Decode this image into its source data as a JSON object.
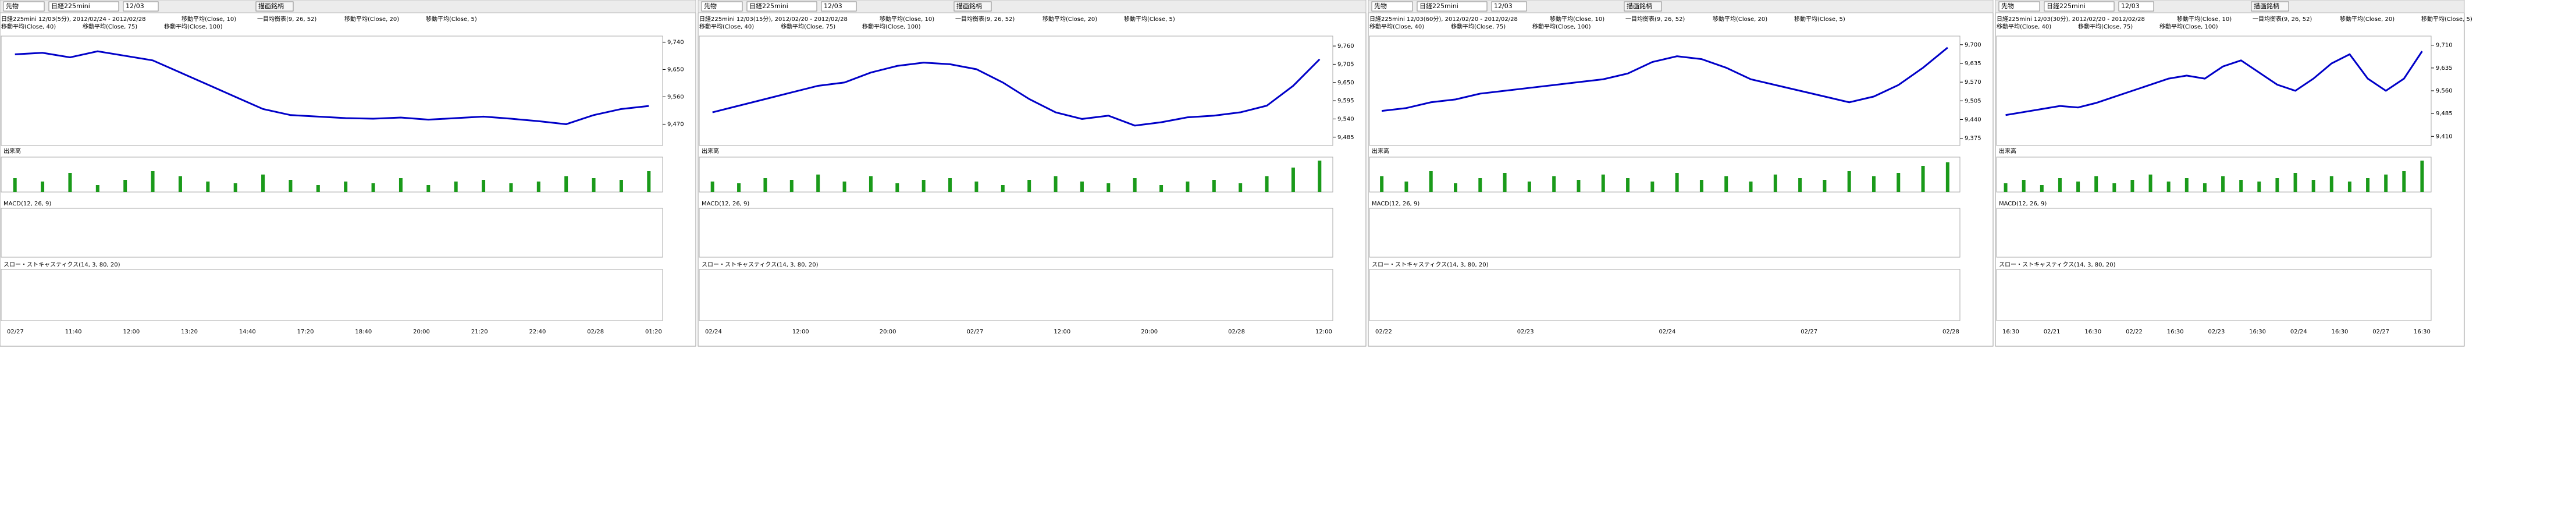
{
  "panels": [
    {
      "toolbar": {
        "instrument": "先物",
        "symbol": "日経225mini",
        "contract": "12/03",
        "button": "描画銘柄"
      },
      "legend": [
        "日経225mini 12/03(5分), 2012/02/24 - 2012/02/28",
        "移動平均(Close, 10)",
        "一目均衡表(9, 26, 52)",
        "移動平均(Close, 20)",
        "移動平均(Close, 5)",
        "移動平均(Close, 40)",
        "移動平均(Close, 75)",
        "移動平均(Close, 100)"
      ],
      "price": {
        "ylim": [
          9400,
          9760
        ],
        "yticks": [
          {
            "value": 9740,
            "label": "9,740"
          },
          {
            "value": 9650,
            "label": "9,650"
          },
          {
            "value": 9560,
            "label": "9,560"
          },
          {
            "value": 9470,
            "label": "9,470"
          }
        ],
        "values": [
          9700,
          9705,
          9690,
          9710,
          9695,
          9680,
          9640,
          9600,
          9560,
          9520,
          9500,
          9495,
          9490,
          9488,
          9492,
          9485,
          9490,
          9495,
          9488,
          9480,
          9470,
          9500,
          9520,
          9530
        ]
      },
      "volume": {
        "label": "出来高",
        "ylim": [
          0,
          100
        ],
        "values": [
          40,
          30,
          55,
          20,
          35,
          60,
          45,
          30,
          25,
          50,
          35,
          20,
          30,
          25,
          40,
          20,
          30,
          35,
          25,
          30,
          45,
          40,
          35,
          60
        ]
      },
      "macd": "MACD(12, 26, 9)",
      "stoch": "スロー・ストキャスティクス(14, 3, 80, 20)",
      "xlabels": [
        "02/27",
        "11:40",
        "12:00",
        "13:20",
        "14:40",
        "17:20",
        "18:40",
        "20:00",
        "21:20",
        "22:40",
        "02/28",
        "01:20"
      ]
    },
    {
      "toolbar": {
        "instrument": "先物",
        "symbol": "日経225mini",
        "contract": "12/03",
        "button": "描画銘柄"
      },
      "legend": [
        "日経225mini 12/03(15分), 2012/02/20 - 2012/02/28",
        "移動平均(Close, 10)",
        "一目均衡表(9, 26, 52)",
        "移動平均(Close, 20)",
        "移動平均(Close, 5)",
        "移動平均(Close, 40)",
        "移動平均(Close, 75)",
        "移動平均(Close, 100)"
      ],
      "price": {
        "ylim": [
          9460,
          9790
        ],
        "yticks": [
          {
            "value": 9760,
            "label": "9,760"
          },
          {
            "value": 9705,
            "label": "9,705"
          },
          {
            "value": 9650,
            "label": "9,650"
          },
          {
            "value": 9595,
            "label": "9,595"
          },
          {
            "value": 9540,
            "label": "9,540"
          },
          {
            "value": 9485,
            "label": "9,485"
          }
        ],
        "values": [
          9560,
          9580,
          9600,
          9620,
          9640,
          9650,
          9680,
          9700,
          9710,
          9705,
          9690,
          9650,
          9600,
          9560,
          9540,
          9550,
          9520,
          9530,
          9545,
          9550,
          9560,
          9580,
          9640,
          9720
        ]
      },
      "volume": {
        "label": "出来高",
        "ylim": [
          0,
          100
        ],
        "values": [
          30,
          25,
          40,
          35,
          50,
          30,
          45,
          25,
          35,
          40,
          30,
          20,
          35,
          45,
          30,
          25,
          40,
          20,
          30,
          35,
          25,
          45,
          70,
          90
        ]
      },
      "macd": "MACD(12, 26, 9)",
      "stoch": "スロー・ストキャスティクス(14, 3, 80, 20)",
      "xlabels": [
        "02/24",
        "12:00",
        "20:00",
        "02/27",
        "12:00",
        "20:00",
        "02/28",
        "12:00"
      ]
    },
    {
      "toolbar": {
        "instrument": "先物",
        "symbol": "日経225mini",
        "contract": "12/03",
        "button": "描画銘柄"
      },
      "legend": [
        "日経225mini 12/03(60分), 2012/02/20 - 2012/02/28",
        "移動平均(Close, 10)",
        "一目均衡表(9, 26, 52)",
        "移動平均(Close, 20)",
        "移動平均(Close, 5)",
        "移動平均(Close, 40)",
        "移動平均(Close, 75)",
        "移動平均(Close, 100)"
      ],
      "price": {
        "ylim": [
          9350,
          9730
        ],
        "yticks": [
          {
            "value": 9700,
            "label": "9,700"
          },
          {
            "value": 9635,
            "label": "9,635"
          },
          {
            "value": 9570,
            "label": "9,570"
          },
          {
            "value": 9505,
            "label": "9,505"
          },
          {
            "value": 9440,
            "label": "9,440"
          },
          {
            "value": 9375,
            "label": "9,375"
          }
        ],
        "values": [
          9470,
          9480,
          9500,
          9510,
          9530,
          9540,
          9550,
          9560,
          9570,
          9580,
          9600,
          9640,
          9660,
          9650,
          9620,
          9580,
          9560,
          9540,
          9520,
          9500,
          9520,
          9560,
          9620,
          9690
        ]
      },
      "volume": {
        "label": "出来高",
        "ylim": [
          0,
          100
        ],
        "values": [
          45,
          30,
          60,
          25,
          40,
          55,
          30,
          45,
          35,
          50,
          40,
          30,
          55,
          35,
          45,
          30,
          50,
          40,
          35,
          60,
          45,
          55,
          75,
          85
        ]
      },
      "macd": "MACD(12, 26, 9)",
      "stoch": "スロー・ストキャスティクス(14, 3, 80, 20)",
      "xlabels": [
        "02/22",
        "02/23",
        "02/24",
        "02/27",
        "02/28"
      ]
    },
    {
      "toolbar": {
        "instrument": "先物",
        "symbol": "日経225mini",
        "contract": "12/03",
        "button": "描画銘柄"
      },
      "legend": [
        "日経225mini 12/03(30分), 2012/02/20 - 2012/02/28",
        "移動平均(Close, 10)",
        "一目均衡表(9, 26, 52)",
        "移動平均(Close, 20)",
        "移動平均(Close, 5)",
        "移動平均(Close, 40)",
        "移動平均(Close, 75)",
        "移動平均(Close, 100)"
      ],
      "price": {
        "ylim": [
          9380,
          9740
        ],
        "yticks": [
          {
            "value": 9710,
            "label": "9,710"
          },
          {
            "value": 9635,
            "label": "9,635"
          },
          {
            "value": 9560,
            "label": "9,560"
          },
          {
            "value": 9485,
            "label": "9,485"
          },
          {
            "value": 9410,
            "label": "9,410"
          }
        ],
        "values": [
          9480,
          9490,
          9500,
          9510,
          9505,
          9520,
          9540,
          9560,
          9580,
          9600,
          9610,
          9600,
          9640,
          9660,
          9620,
          9580,
          9560,
          9600,
          9650,
          9680,
          9600,
          9560,
          9600,
          9690
        ]
      },
      "volume": {
        "label": "出来高",
        "ylim": [
          0,
          100
        ],
        "values": [
          25,
          35,
          20,
          40,
          30,
          45,
          25,
          35,
          50,
          30,
          40,
          25,
          45,
          35,
          30,
          40,
          55,
          35,
          45,
          30,
          40,
          50,
          60,
          90
        ]
      },
      "macd": "MACD(12, 26, 9)",
      "stoch": "スロー・ストキャスティクス(14, 3, 80, 20)",
      "xlabels": [
        "16:30",
        "02/21",
        "16:30",
        "02/22",
        "16:30",
        "02/23",
        "16:30",
        "02/24",
        "16:30",
        "02/27",
        "16:30"
      ]
    }
  ]
}
